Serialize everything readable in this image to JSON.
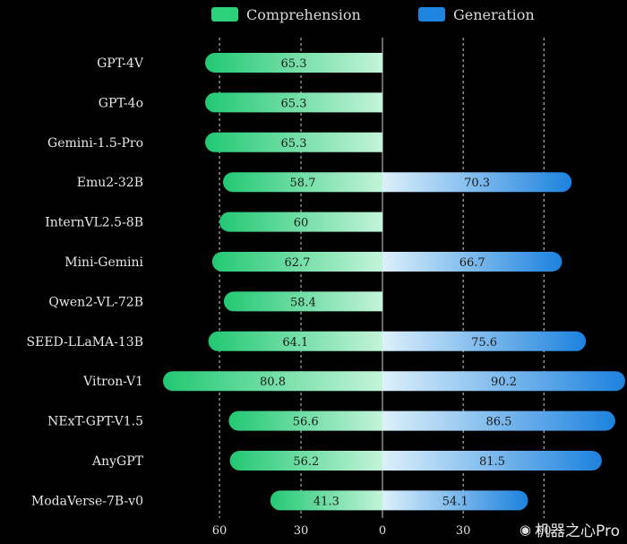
{
  "chart_data": {
    "type": "bar",
    "orientation": "horizontal-diverging",
    "categories": [
      "GPT-4V",
      "GPT-4o",
      "Gemini-1.5-Pro",
      "Emu2-32B",
      "InternVL2.5-8B",
      "Mini-Gemini",
      "Qwen2-VL-72B",
      "SEED-LLaMA-13B",
      "Vitron-V1",
      "NExT-GPT-V1.5",
      "AnyGPT",
      "ModaVerse-7B-v0"
    ],
    "series": [
      {
        "name": "Comprehension",
        "direction": "left",
        "color": "#2fd07a",
        "values": [
          65.3,
          65.3,
          65.3,
          58.7,
          60,
          62.7,
          58.4,
          64.1,
          80.8,
          56.6,
          56.2,
          41.3
        ]
      },
      {
        "name": "Generation",
        "direction": "right",
        "color": "#1e86e0",
        "values": [
          null,
          null,
          null,
          70.3,
          null,
          66.7,
          null,
          75.6,
          90.2,
          86.5,
          81.5,
          54.1
        ]
      }
    ],
    "x_ticks": [
      "60",
      "30",
      "0",
      "30",
      "60"
    ],
    "xlim_left": 80.8,
    "xlim_right": 90.2,
    "grid": "dashed vertical",
    "legend": "top-center"
  },
  "watermark": {
    "text": "机器之心Pro",
    "icon": "weibo-icon"
  }
}
